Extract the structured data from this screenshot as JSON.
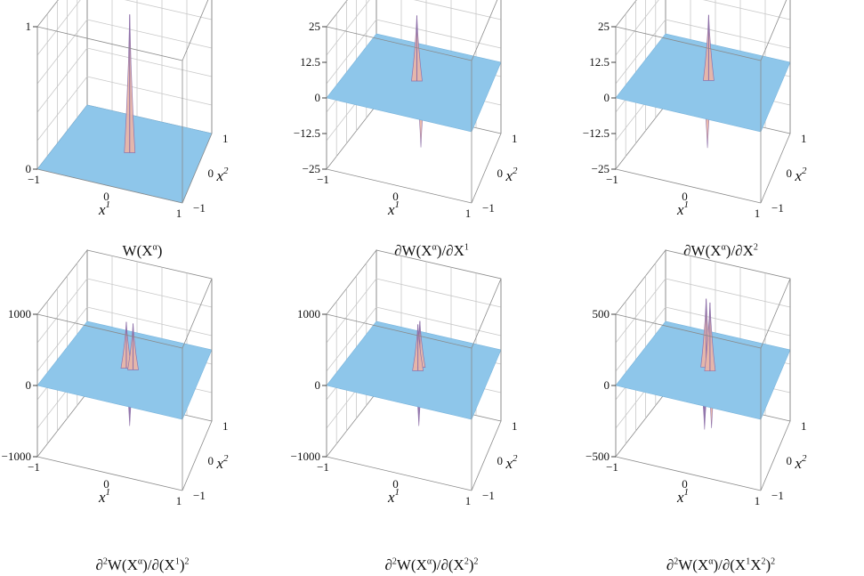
{
  "figure": {
    "colors": {
      "surface": "#8ec6ea",
      "surface_edge": "#79b4dc",
      "spike_a": "#e9b6a8",
      "spike_b": "#8d6fa8",
      "box": "#8a8a8a",
      "grid": "#c8c8c8"
    }
  },
  "chart_data": [
    {
      "type": "surface3d",
      "caption": {
        "text": "W(X",
        "sup": "α",
        "tail": ")"
      },
      "xlabel": "x",
      "xlabel_sup": "1",
      "ylabel": "x",
      "ylabel_sup": "2",
      "x_ticks": [
        "−1",
        "0",
        "1"
      ],
      "y_ticks": [
        "−1",
        "0",
        "1"
      ],
      "z_ticks": [
        {
          "value": 0,
          "label": "0"
        },
        {
          "value": 1,
          "label": "1"
        }
      ],
      "zlim": [
        0,
        1
      ],
      "base_value": 0,
      "spikes": [
        {
          "x": 0.0,
          "y": 0.0,
          "value": 0.97
        }
      ]
    },
    {
      "type": "surface3d",
      "caption": {
        "text": "∂W(X",
        "sup": "α",
        "tail": ")/∂X",
        "sup2": "1"
      },
      "xlabel": "x",
      "xlabel_sup": "1",
      "ylabel": "x",
      "ylabel_sup": "2",
      "x_ticks": [
        "−1",
        "0",
        "1"
      ],
      "y_ticks": [
        "−1",
        "0",
        "1"
      ],
      "z_ticks": [
        {
          "value": -25,
          "label": "−25"
        },
        {
          "value": -12.5,
          "label": "−12.5"
        },
        {
          "value": 0,
          "label": "0"
        },
        {
          "value": 12.5,
          "label": "12.5"
        },
        {
          "value": 25,
          "label": "25"
        }
      ],
      "zlim": [
        -25,
        25
      ],
      "base_value": 0,
      "spikes": [
        {
          "x": -0.03,
          "y": 0.0,
          "value": 23
        },
        {
          "x": 0.03,
          "y": 0.0,
          "value": -23
        }
      ]
    },
    {
      "type": "surface3d",
      "caption": {
        "text": "∂W(X",
        "sup": "α",
        "tail": ")/∂X",
        "sup2": "2"
      },
      "xlabel": "x",
      "xlabel_sup": "1",
      "ylabel": "x",
      "ylabel_sup": "2",
      "x_ticks": [
        "−1",
        "0",
        "1"
      ],
      "y_ticks": [
        "−1",
        "0",
        "1"
      ],
      "z_ticks": [
        {
          "value": -25,
          "label": "−25"
        },
        {
          "value": -12.5,
          "label": "−12.5"
        },
        {
          "value": 0,
          "label": "0"
        },
        {
          "value": 12.5,
          "label": "12.5"
        },
        {
          "value": 25,
          "label": "25"
        }
      ],
      "zlim": [
        -25,
        25
      ],
      "base_value": 0,
      "spikes": [
        {
          "x": 0.0,
          "y": 0.03,
          "value": 23
        },
        {
          "x": 0.0,
          "y": -0.03,
          "value": -23
        }
      ]
    },
    {
      "type": "surface3d",
      "caption": {
        "text": "∂",
        "sup": "2",
        "tail": "W(X",
        "sup2": "α",
        "tail2": ")/∂(X",
        "sup3": "1",
        "tail3": ")",
        "sup4": "2"
      },
      "xlabel": "x",
      "xlabel_sup": "1",
      "ylabel": "x",
      "ylabel_sup": "2",
      "x_ticks": [
        "−1",
        "0",
        "1"
      ],
      "y_ticks": [
        "−1",
        "0",
        "1"
      ],
      "z_ticks": [
        {
          "value": -1000,
          "label": "−1000"
        },
        {
          "value": 0,
          "label": "0"
        },
        {
          "value": 1000,
          "label": "1000"
        }
      ],
      "zlim": [
        -1000,
        1000
      ],
      "base_value": 0,
      "spikes": [
        {
          "x": -0.05,
          "y": 0.0,
          "value": 650
        },
        {
          "x": 0.05,
          "y": 0.0,
          "value": 650
        },
        {
          "x": 0.0,
          "y": 0.0,
          "value": -800
        }
      ]
    },
    {
      "type": "surface3d",
      "caption": {
        "text": "∂",
        "sup": "2",
        "tail": "W(X",
        "sup2": "α",
        "tail2": ")/∂(X",
        "sup3": "2",
        "tail3": ")",
        "sup4": "2"
      },
      "xlabel": "x",
      "xlabel_sup": "1",
      "ylabel": "x",
      "ylabel_sup": "2",
      "x_ticks": [
        "−1",
        "0",
        "1"
      ],
      "y_ticks": [
        "−1",
        "0",
        "1"
      ],
      "z_ticks": [
        {
          "value": -1000,
          "label": "−1000"
        },
        {
          "value": 0,
          "label": "0"
        },
        {
          "value": 1000,
          "label": "1000"
        }
      ],
      "zlim": [
        -1000,
        1000
      ],
      "base_value": 0,
      "spikes": [
        {
          "x": 0.0,
          "y": 0.05,
          "value": 650
        },
        {
          "x": 0.0,
          "y": -0.05,
          "value": 650
        },
        {
          "x": 0.0,
          "y": 0.0,
          "value": -800
        }
      ]
    },
    {
      "type": "surface3d",
      "caption": {
        "text": "∂",
        "sup": "2",
        "tail": "W(X",
        "sup2": "α",
        "tail2": ")/∂(X",
        "sup3": "1",
        "tail3": "X",
        "sup4": "2",
        "tail4": ")",
        "sup5": "2"
      },
      "xlabel": "x",
      "xlabel_sup": "1",
      "ylabel": "x",
      "ylabel_sup": "2",
      "x_ticks": [
        "−1",
        "0",
        "1"
      ],
      "y_ticks": [
        "−1",
        "0",
        "1"
      ],
      "z_ticks": [
        {
          "value": -500,
          "label": "−500"
        },
        {
          "value": 0,
          "label": "0"
        },
        {
          "value": 500,
          "label": "500"
        }
      ],
      "zlim": [
        -500,
        500
      ],
      "base_value": 0,
      "spikes": [
        {
          "x": -0.04,
          "y": 0.04,
          "value": 480
        },
        {
          "x": 0.04,
          "y": -0.04,
          "value": 480
        },
        {
          "x": -0.04,
          "y": -0.04,
          "value": -420
        },
        {
          "x": 0.04,
          "y": 0.04,
          "value": -420
        }
      ]
    }
  ]
}
